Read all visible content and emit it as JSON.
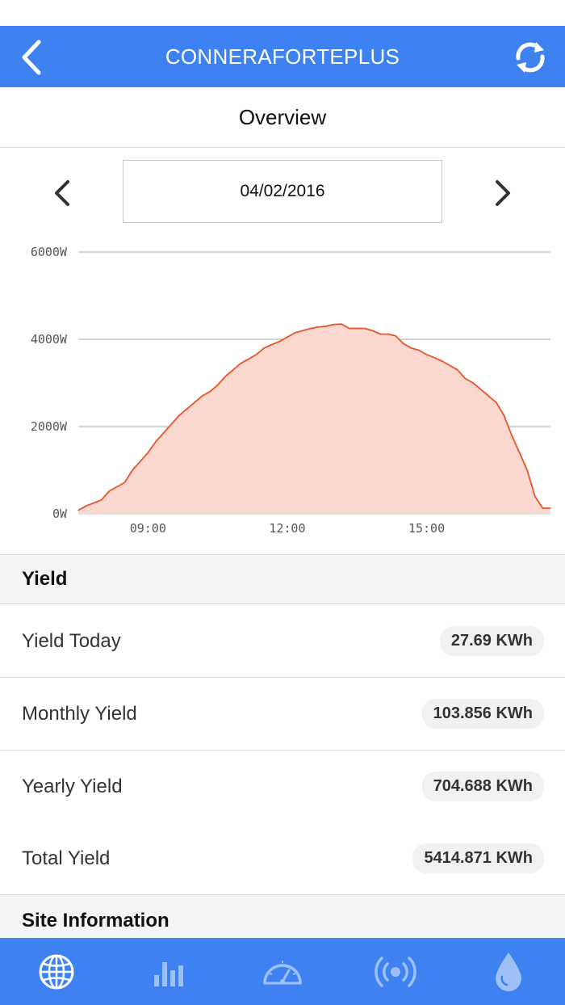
{
  "nav": {
    "title": "CONNERAFORTEPLUS"
  },
  "overview": {
    "title": "Overview"
  },
  "date": {
    "value": "04/02/2016"
  },
  "chart_data": {
    "type": "area",
    "title": "",
    "xlabel": "",
    "ylabel": "",
    "y_unit": "W",
    "ylim": [
      0,
      6000
    ],
    "yticks": [
      0,
      2000,
      4000,
      6000
    ],
    "ytick_labels": [
      "0W",
      "2000W",
      "4000W",
      "6000W"
    ],
    "xlim": [
      "07:30",
      "17:40"
    ],
    "xticks": [
      "09:00",
      "12:00",
      "15:00"
    ],
    "grid": true,
    "legend": "none",
    "series_color": "#e8542a",
    "fill_color": "#fad7cf",
    "series": [
      {
        "x": [
          "07:30",
          "07:40",
          "07:50",
          "08:00",
          "08:10",
          "08:20",
          "08:30",
          "08:40",
          "08:50",
          "09:00",
          "09:10",
          "09:20",
          "09:30",
          "09:40",
          "09:50",
          "10:00",
          "10:10",
          "10:20",
          "10:30",
          "10:40",
          "10:50",
          "11:00",
          "11:10",
          "11:20",
          "11:30",
          "11:40",
          "11:50",
          "12:00",
          "12:10",
          "12:20",
          "12:30",
          "12:40",
          "12:50",
          "13:00",
          "13:10",
          "13:20",
          "13:30",
          "13:40",
          "13:50",
          "14:00",
          "14:10",
          "14:20",
          "14:30",
          "14:40",
          "14:50",
          "15:00",
          "15:10",
          "15:20",
          "15:30",
          "15:40",
          "15:50",
          "16:00",
          "16:10",
          "16:20",
          "16:30",
          "16:40",
          "16:50",
          "17:00",
          "17:10",
          "17:20",
          "17:30",
          "17:40"
        ],
        "y": [
          80,
          180,
          250,
          320,
          520,
          620,
          720,
          1000,
          1200,
          1400,
          1650,
          1850,
          2050,
          2250,
          2400,
          2550,
          2700,
          2800,
          2950,
          3150,
          3300,
          3450,
          3550,
          3650,
          3800,
          3880,
          3950,
          4050,
          4150,
          4200,
          4250,
          4280,
          4300,
          4340,
          4350,
          4250,
          4250,
          4250,
          4200,
          4120,
          4120,
          4080,
          3900,
          3800,
          3750,
          3650,
          3580,
          3500,
          3400,
          3300,
          3100,
          3000,
          2850,
          2700,
          2550,
          2250,
          1800,
          1400,
          1000,
          400,
          130,
          130
        ]
      }
    ]
  },
  "yield_section": {
    "title": "Yield"
  },
  "yield_rows": [
    {
      "label": "Yield Today",
      "value": "27.69 KWh"
    },
    {
      "label": "Monthly Yield",
      "value": "103.856 KWh"
    },
    {
      "label": "Yearly Yield",
      "value": "704.688 KWh"
    },
    {
      "label": "Total Yield",
      "value": "5414.871 KWh"
    }
  ],
  "site_section": {
    "title": "Site Information"
  },
  "tabs": [
    {
      "icon": "globe-icon",
      "active": true
    },
    {
      "icon": "bar-chart-icon",
      "active": false
    },
    {
      "icon": "speedometer-icon",
      "active": false
    },
    {
      "icon": "broadcast-icon",
      "active": false
    },
    {
      "icon": "water-drop-icon",
      "active": false
    }
  ],
  "colors": {
    "accent": "#3d82f0",
    "tab_inactive": "#9cc0f7",
    "chart_line": "#e8542a",
    "chart_fill": "#fad7cf"
  }
}
